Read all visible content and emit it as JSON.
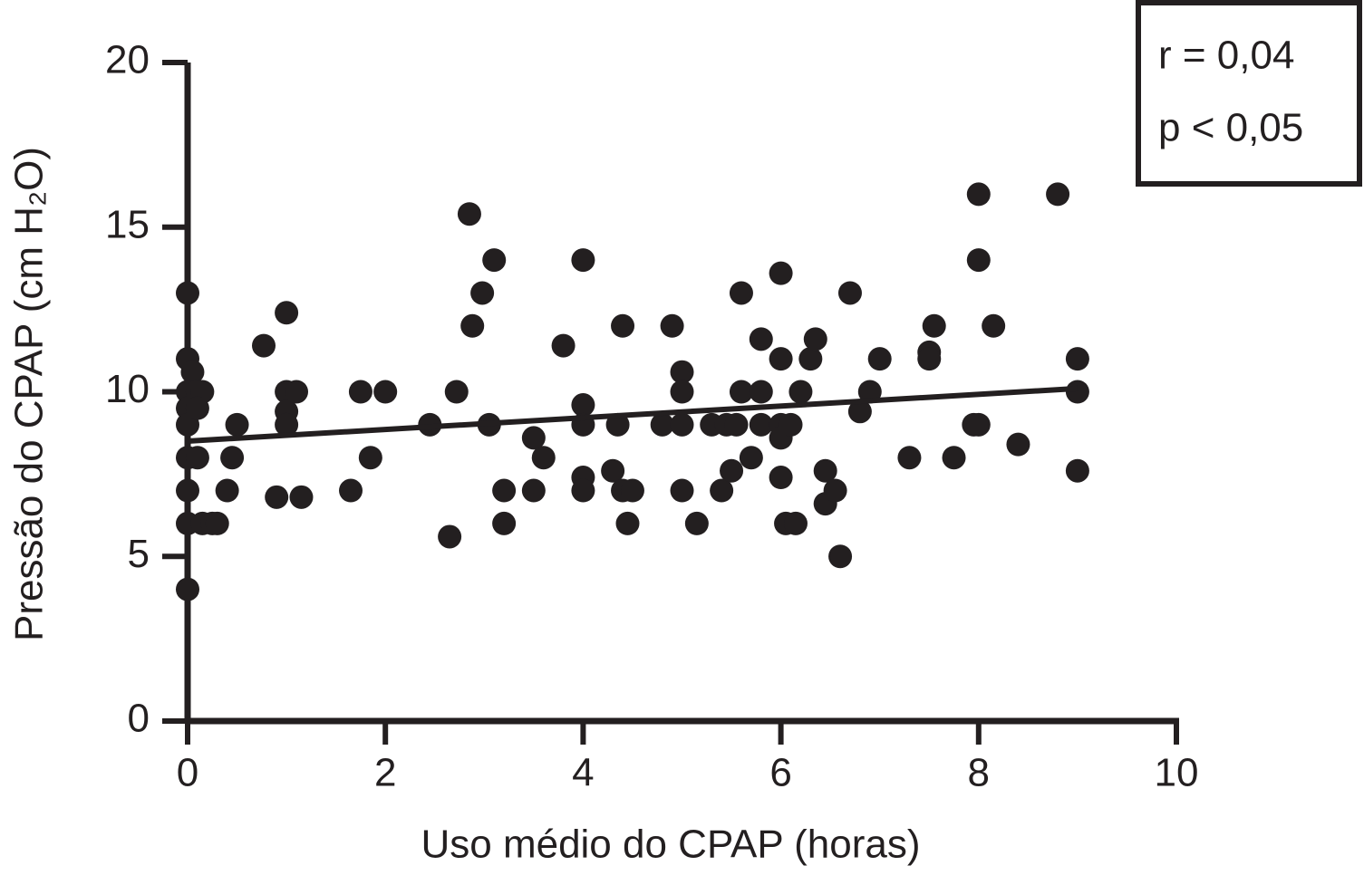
{
  "chart_data": {
    "type": "scatter",
    "x_label": "Uso médio do CPAP (horas)",
    "y_label": "Pressão do CPAP (cm H₂O)",
    "annotations": [
      "r = 0,04",
      "p < 0,05"
    ],
    "color": "#231f20",
    "xlim": [
      0,
      10
    ],
    "ylim": [
      0,
      20
    ],
    "xticks": [
      0,
      2,
      4,
      6,
      8,
      10
    ],
    "yticks": [
      0,
      5,
      10,
      15,
      20
    ],
    "x": [
      0,
      0,
      0.05,
      0,
      0,
      0,
      0,
      0,
      0,
      0,
      0.1,
      0.15,
      0.1,
      0.1,
      0.15,
      0.25,
      0.3,
      0.45,
      0.5,
      0.4,
      0.77,
      0.9,
      1,
      1,
      1,
      1,
      1.1,
      1.15,
      1.65,
      1.75,
      1.85,
      2,
      2.45,
      2.65,
      2.72,
      2.85,
      2.88,
      2.98,
      3.05,
      3.1,
      3.2,
      3.2,
      3.5,
      3.5,
      3.6,
      3.8,
      4,
      4,
      4,
      4,
      4,
      4.3,
      4.35,
      4.4,
      4.4,
      4.45,
      4.5,
      4.8,
      4.9,
      5,
      5,
      5,
      5,
      5.15,
      5.3,
      5.45,
      5.4,
      5.5,
      5.55,
      5.6,
      5.6,
      5.7,
      5.8,
      5.8,
      5.8,
      6,
      6,
      6,
      6,
      6,
      6.05,
      6.1,
      6.15,
      6.2,
      6.3,
      6.35,
      6.45,
      6.45,
      6.55,
      6.6,
      6.7,
      6.8,
      6.9,
      7,
      7.3,
      7.5,
      7.5,
      7.55,
      7.75,
      7.95,
      8,
      8,
      8,
      8.15,
      8.4,
      8.8,
      9,
      9,
      9
    ],
    "values": [
      13,
      11,
      10.6,
      10,
      9.5,
      9,
      8,
      7,
      6,
      4,
      10,
      10,
      9.5,
      8,
      6,
      6,
      6,
      8,
      9,
      7,
      11.4,
      6.8,
      12.4,
      10,
      9.4,
      9,
      10,
      6.8,
      7,
      10,
      8,
      10,
      9,
      5.6,
      10,
      15.4,
      12,
      13,
      9,
      14,
      7,
      6,
      8.6,
      7,
      8,
      11.4,
      14,
      9.6,
      9,
      7.4,
      7,
      7.6,
      9,
      12,
      7,
      6,
      7,
      9,
      12,
      10.6,
      10,
      9,
      7,
      6,
      9,
      9,
      7,
      7.6,
      9,
      13,
      10,
      8,
      11.6,
      10,
      9,
      13.6,
      11,
      9,
      8.6,
      7.4,
      6,
      9,
      6,
      10,
      11,
      11.6,
      7.6,
      6.6,
      7,
      5,
      13,
      9.4,
      10,
      11,
      8,
      11.2,
      11,
      12,
      8,
      9,
      16,
      14,
      9,
      12,
      8.4,
      16,
      11,
      10,
      7.6
    ],
    "trend": {
      "x": [
        0,
        9
      ],
      "values": [
        8.5,
        10.1
      ]
    }
  }
}
